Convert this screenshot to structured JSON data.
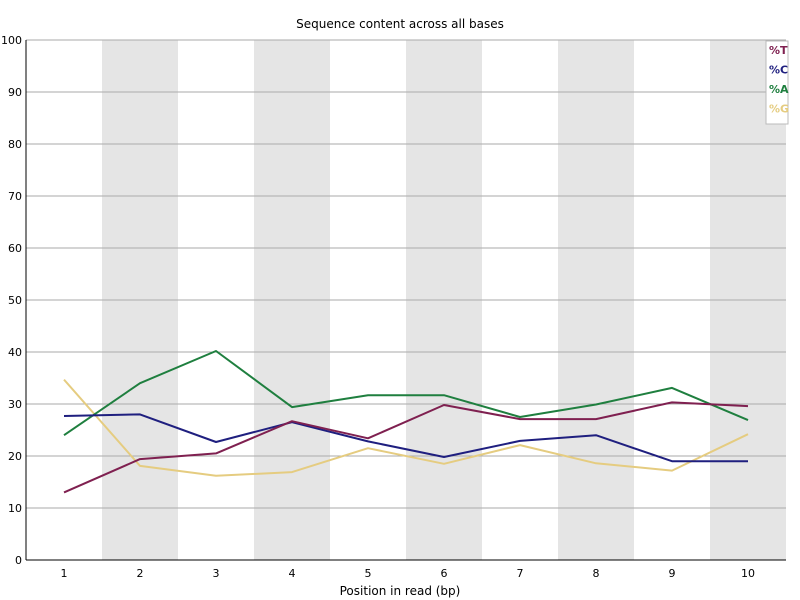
{
  "chart_data": {
    "type": "line",
    "title": "Sequence content across all bases",
    "xlabel": "Position in read (bp)",
    "ylabel": "",
    "categories": [
      "1",
      "2",
      "3",
      "4",
      "5",
      "6",
      "7",
      "8",
      "9",
      "10"
    ],
    "ylim": [
      0,
      100
    ],
    "yticks": [
      0,
      10,
      20,
      30,
      40,
      50,
      60,
      70,
      80,
      90,
      100
    ],
    "grid": true,
    "alternating_bands": true,
    "legend_position": "top-right",
    "series": [
      {
        "name": "%T",
        "color": "#7f2050",
        "values": [
          13.0,
          19.4,
          20.5,
          26.7,
          23.4,
          29.8,
          27.1,
          27.1,
          30.3,
          29.6
        ]
      },
      {
        "name": "%C",
        "color": "#1f1f7f",
        "values": [
          27.7,
          28.0,
          22.7,
          26.5,
          22.8,
          19.8,
          22.9,
          24.0,
          19.0,
          19.0
        ]
      },
      {
        "name": "%A",
        "color": "#1f7f3f",
        "values": [
          24.0,
          34.0,
          40.2,
          29.4,
          31.7,
          31.7,
          27.5,
          29.9,
          33.1,
          26.9
        ]
      },
      {
        "name": "%G",
        "color": "#e5cc80",
        "values": [
          34.7,
          18.1,
          16.2,
          16.9,
          21.5,
          18.5,
          22.1,
          18.6,
          17.2,
          24.2
        ]
      }
    ]
  }
}
